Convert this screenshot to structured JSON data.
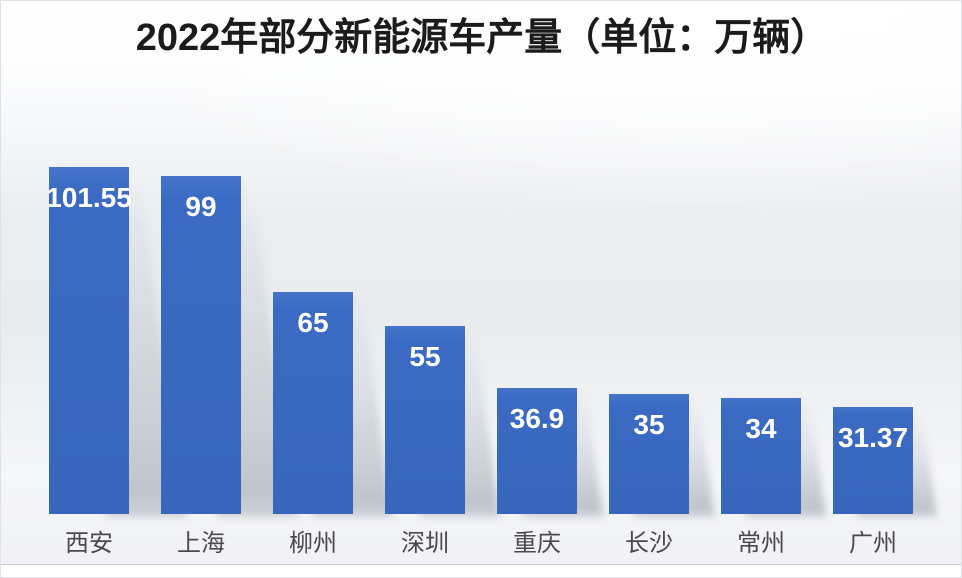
{
  "chart_data": {
    "type": "bar",
    "title": "2022年部分新能源车产量（单位：万辆）",
    "unit": "万辆",
    "categories": [
      "西安",
      "上海",
      "柳州",
      "深圳",
      "重庆",
      "长沙",
      "常州",
      "广州"
    ],
    "values": [
      101.55,
      99,
      65,
      55,
      36.9,
      35,
      34,
      31.37
    ],
    "value_labels": [
      "101.55",
      "99",
      "65",
      "55",
      "36.9",
      "35",
      "34",
      "31.37"
    ],
    "xlabel": "",
    "ylabel": "",
    "ylim": [
      0,
      110
    ],
    "grid": false,
    "legend": "none",
    "axis_lines": "none",
    "value_label_position": "inside-top",
    "colors": {
      "bar": "#3a6ac3",
      "value_label": "#ffffff",
      "category_label": "#4a4a4d",
      "title": "#1b1b1b",
      "plot_background_top": "#fbfcfd",
      "plot_background_middle": "#e9ebee",
      "plot_background_bottom": "#f1f2f4",
      "divider_line": "#c6cbd4"
    }
  }
}
